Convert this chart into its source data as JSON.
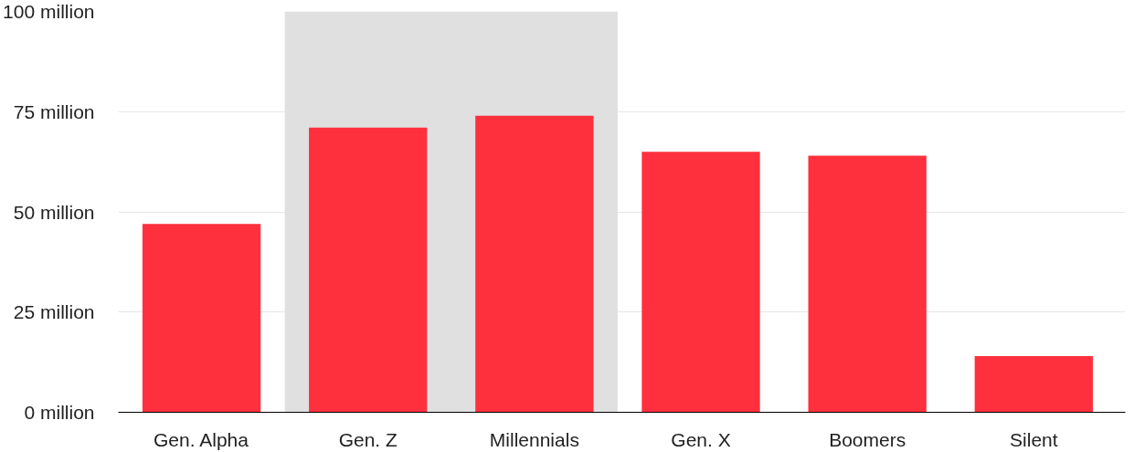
{
  "chart_data": {
    "type": "bar",
    "categories": [
      "Gen. Alpha",
      "Gen. Z",
      "Millennials",
      "Gen. X",
      "Boomers",
      "Silent"
    ],
    "values": [
      47,
      71,
      74,
      65,
      64,
      14
    ],
    "color": "#ff303d",
    "ylim": [
      0,
      100
    ],
    "yticks": [
      {
        "value": 0,
        "label": "0 million"
      },
      {
        "value": 25,
        "label": "25 million"
      },
      {
        "value": 50,
        "label": "50 million"
      },
      {
        "value": 75,
        "label": "75 million"
      },
      {
        "value": 100,
        "label": "100 million"
      }
    ],
    "grid": "y",
    "bands": [
      {
        "axis": "x",
        "from": "Gen. Z",
        "to": "Millennials",
        "color": "#e0e0e0"
      }
    ]
  }
}
